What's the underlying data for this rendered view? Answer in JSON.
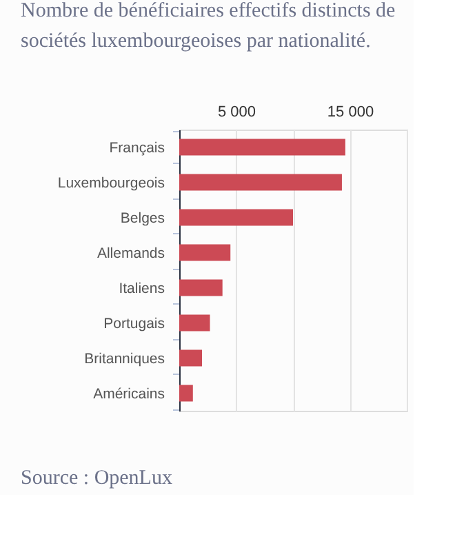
{
  "chart_data": {
    "type": "bar",
    "orientation": "horizontal",
    "title": "Nombre de bénéficiaires effectifs distincts de sociétés luxembourgeoises par nationalité.",
    "categories": [
      "Français",
      "Luxembourgeois",
      "Belges",
      "Allemands",
      "Italiens",
      "Portugais",
      "Britanniques",
      "Américains"
    ],
    "values": [
      14600,
      14300,
      10000,
      4500,
      3800,
      2700,
      2000,
      1200
    ],
    "color": "#cc4a55",
    "xlim": [
      0,
      20000
    ],
    "xticks": [
      {
        "value": 5000,
        "label": "5 000"
      },
      {
        "value": 10000,
        "label": null
      },
      {
        "value": 15000,
        "label": "15 000"
      },
      {
        "value": 20000,
        "label": null
      }
    ],
    "grid": "x",
    "annotations": [
      "Source : OpenLux"
    ]
  }
}
